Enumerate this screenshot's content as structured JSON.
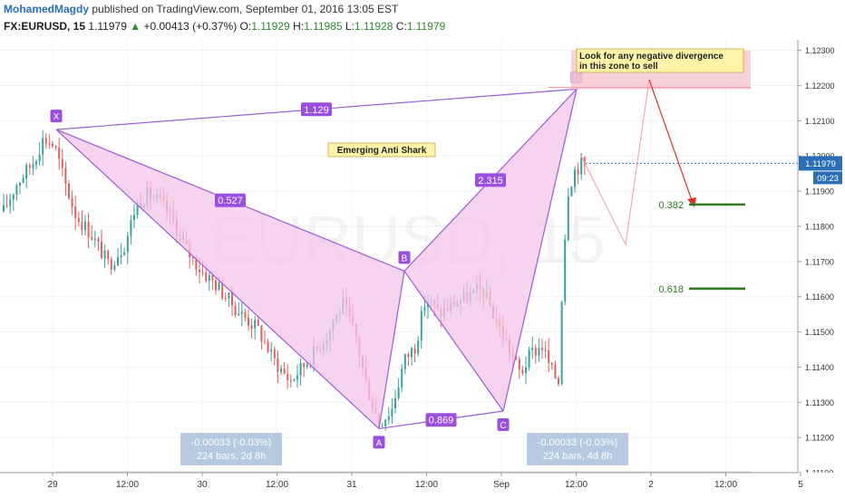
{
  "header": {
    "author": "MohamedMagdy",
    "published_text": "published on TradingView.com, September 01, 2016 13:05 EST",
    "symbol": "FX:EURUSD, 15",
    "last": "1.11979",
    "change_arrow": "▲",
    "change": "+0.00413 (+0.37%)",
    "o_label": "O:",
    "o_value": "1.11929",
    "h_label": "H:",
    "h_value": "1.11985",
    "l_label": "L:",
    "l_value": "1.11928",
    "c_label": "C:",
    "c_value": "1.11979"
  },
  "chart_data": {
    "type": "candlestick",
    "watermark": "EURUSD, 15",
    "x_tick_labels": [
      "29",
      "12:00",
      "30",
      "12:00",
      "31",
      "12:00",
      "Sep",
      "12:00",
      "2",
      "12:00",
      "5"
    ],
    "y_tick_labels": [
      "1.11100",
      "1.11200",
      "1.11300",
      "1.11400",
      "1.11500",
      "1.11600",
      "1.11700",
      "1.11800",
      "1.11900",
      "1.12000",
      "1.12100",
      "1.12200",
      "1.12300"
    ],
    "ylim": [
      1.111,
      1.1233
    ],
    "last_price_label": "1.11979",
    "countdown_label": "09:23",
    "price_path": [
      [
        0,
        1.1182
      ],
      [
        18,
        1.1192
      ],
      [
        36,
        1.1198
      ],
      [
        48,
        1.1205
      ],
      [
        60,
        1.1203
      ],
      [
        72,
        1.1192
      ],
      [
        84,
        1.1183
      ],
      [
        100,
        1.1178
      ],
      [
        120,
        1.1169
      ],
      [
        138,
        1.1175
      ],
      [
        150,
        1.1186
      ],
      [
        162,
        1.1189
      ],
      [
        176,
        1.1187
      ],
      [
        190,
        1.1182
      ],
      [
        204,
        1.1174
      ],
      [
        220,
        1.1168
      ],
      [
        240,
        1.1163
      ],
      [
        262,
        1.1156
      ],
      [
        284,
        1.1151
      ],
      [
        302,
        1.1142
      ],
      [
        320,
        1.1136
      ],
      [
        340,
        1.1142
      ],
      [
        360,
        1.1149
      ],
      [
        378,
        1.1158
      ],
      [
        392,
        1.1149
      ],
      [
        404,
        1.1135
      ],
      [
        418,
        1.1124
      ],
      [
        432,
        1.1128
      ],
      [
        446,
        1.1142
      ],
      [
        458,
        1.1146
      ],
      [
        470,
        1.116
      ],
      [
        484,
        1.1155
      ],
      [
        500,
        1.1158
      ],
      [
        516,
        1.116
      ],
      [
        532,
        1.1162
      ],
      [
        546,
        1.1154
      ],
      [
        560,
        1.1146
      ],
      [
        574,
        1.1138
      ],
      [
        586,
        1.1144
      ],
      [
        598,
        1.1146
      ],
      [
        608,
        1.1139
      ],
      [
        616,
        1.1136
      ],
      [
        620,
        1.1163
      ],
      [
        626,
        1.119
      ],
      [
        634,
        1.1196
      ],
      [
        642,
        1.1198
      ],
      [
        646,
        1.1197
      ]
    ],
    "pattern": {
      "name": "Emerging Anti Shark",
      "points": {
        "X": {
          "bar": 62,
          "price": 1.12075
        },
        "A": {
          "bar": 418,
          "price": 1.11225
        },
        "B": {
          "bar": 446,
          "price": 1.11673
        },
        "C": {
          "bar": 555,
          "price": 1.11275
        },
        "D": {
          "bar": 636,
          "price": 1.1219
        }
      },
      "ratios": [
        {
          "text": "1.129",
          "between": "X-D"
        },
        {
          "text": "0.527",
          "between": "X-B"
        },
        {
          "text": "2.315",
          "between": "B-D"
        },
        {
          "text": "0.869",
          "between": "A-C"
        }
      ]
    },
    "zone_note": "Look for any negative divergence in this zone to sell",
    "zone_price": [
      1.1219,
      1.1229
    ],
    "fib_levels": [
      {
        "label": "0.382",
        "price": 1.11862
      },
      {
        "label": "0.618",
        "price": 1.11623
      }
    ],
    "measure_boxes": [
      {
        "line1": "-0.00033 (-0.03%)",
        "line2": "224 bars, 2d 8h"
      },
      {
        "line1": "-0.00033 (-0.03%)",
        "line2": "224 bars, 4d 8h"
      }
    ],
    "colors": {
      "up": "#3aa0a0",
      "down": "#e0605e",
      "pattern_line": "#9a5cd6",
      "pattern_fill": "#f3c6ea",
      "label_bg": "#9b4fe0",
      "fib": "#2f7a1e",
      "arrow": "#e03030",
      "zone": "#f8c9d1",
      "note_bg": "#fff4a8",
      "price_tag": "#2a6fb5"
    }
  }
}
